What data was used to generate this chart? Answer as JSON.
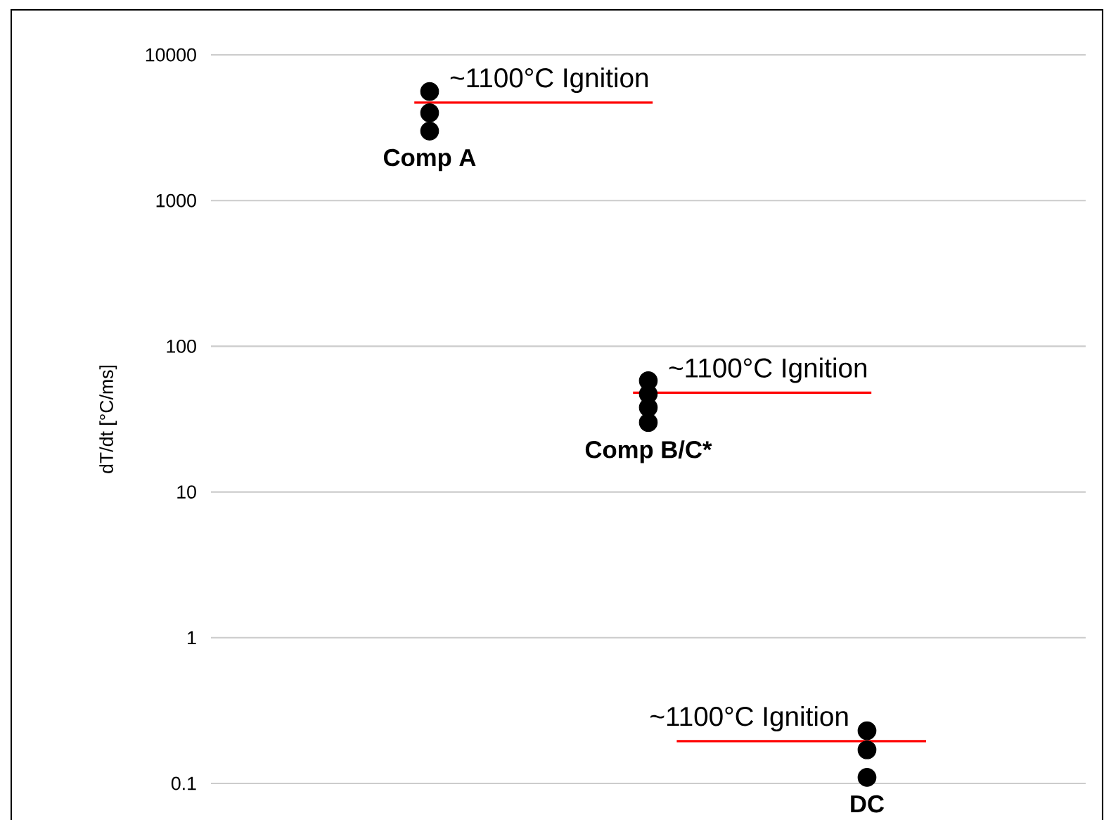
{
  "chart_data": {
    "type": "scatter",
    "ylabel": "dT/dt [°C/ms]",
    "categories": [
      "Comp A",
      "Comp B/C*",
      "DC"
    ],
    "ylim": [
      0.1,
      10000
    ],
    "yticks": [
      0.1,
      1,
      10,
      100,
      1000,
      10000
    ],
    "log": "y",
    "grid": "y",
    "marker": "circle",
    "series": [
      {
        "values": [
          5600,
          58,
          0.23
        ],
        "color": "#000000"
      },
      {
        "values": [
          4000,
          47,
          0.17
        ],
        "color": "#000000"
      },
      {
        "values": [
          3000,
          38,
          0.11
        ],
        "color": "#000000"
      },
      {
        "values": [
          null,
          30,
          null
        ],
        "color": "#000000"
      }
    ],
    "ref_lines": [
      {
        "axis": "y",
        "value": 4700,
        "label": "~1100°C Ignition",
        "color": "#ff0000"
      },
      {
        "axis": "y",
        "value": 48,
        "label": "~1100°C Ignition",
        "color": "#ff0000"
      },
      {
        "axis": "y",
        "value": 0.195,
        "label": "~1100°C Ignition",
        "color": "#ff0000"
      }
    ]
  }
}
